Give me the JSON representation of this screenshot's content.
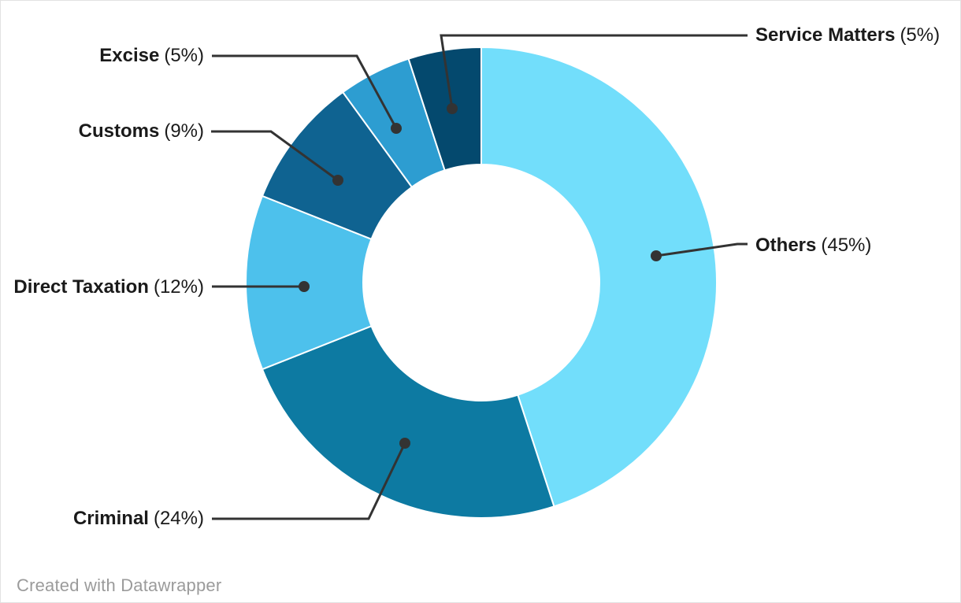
{
  "chart_data": {
    "type": "pie",
    "subtype": "donut",
    "title": "",
    "direction": "clockwise",
    "start_angle_deg": 0,
    "inner_radius_ratio": 0.5,
    "slice_border_color": "#ffffff",
    "leader_line_color": "#333333",
    "label_color": "#1a1a1a",
    "slices": [
      {
        "name": "Others",
        "value": 45,
        "pct_label": "(45%)",
        "color": "#72defb"
      },
      {
        "name": "Criminal",
        "value": 24,
        "pct_label": "(24%)",
        "color": "#0d7aa2"
      },
      {
        "name": "Direct Taxation",
        "value": 12,
        "pct_label": "(12%)",
        "color": "#4dc1ec"
      },
      {
        "name": "Customs",
        "value": 9,
        "pct_label": "(9%)",
        "color": "#0f6391"
      },
      {
        "name": "Excise",
        "value": 5,
        "pct_label": "(5%)",
        "color": "#2d9dd1"
      },
      {
        "name": "Service Matters",
        "value": 5,
        "pct_label": "(5%)",
        "color": "#04496e"
      }
    ]
  },
  "footer": {
    "credit": "Created with Datawrapper"
  }
}
